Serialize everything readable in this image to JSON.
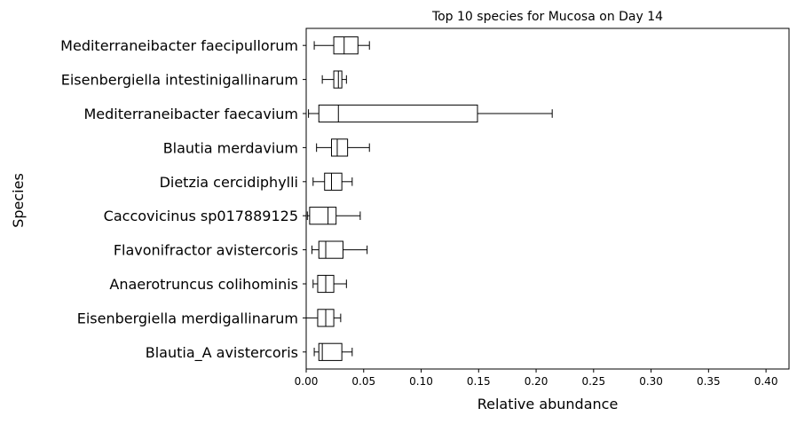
{
  "chart_data": {
    "type": "boxplot",
    "orientation": "horizontal",
    "title": "Top 10 species for Mucosa on Day 14",
    "xlabel": "Relative abundance",
    "ylabel": "Species",
    "xlim": [
      0.0,
      0.42
    ],
    "xticks": [
      0.0,
      0.05,
      0.1,
      0.15,
      0.2,
      0.25,
      0.3,
      0.35,
      0.4
    ],
    "xtick_labels": [
      "0.00",
      "0.05",
      "0.10",
      "0.15",
      "0.20",
      "0.25",
      "0.30",
      "0.35",
      "0.40"
    ],
    "grid": false,
    "box_color": "#000000",
    "categories": [
      "Mediterraneibacter faecipullorum",
      "Eisenbergiella intestinigallinarum",
      "Mediterraneibacter faecavium",
      "Blautia merdavium",
      "Dietzia cercidiphylli",
      "Caccovicinus sp017889125",
      "Flavonifractor avistercoris",
      "Anaerotruncus colihominis",
      "Eisenbergiella merdigallinarum",
      "Blautia_A avistercoris"
    ],
    "boxes": [
      {
        "whisker_low": 0.007,
        "q1": 0.024,
        "median": 0.033,
        "q3": 0.045,
        "whisker_high": 0.055
      },
      {
        "whisker_low": 0.014,
        "q1": 0.024,
        "median": 0.028,
        "q3": 0.031,
        "whisker_high": 0.035
      },
      {
        "whisker_low": 0.002,
        "q1": 0.011,
        "median": 0.028,
        "q3": 0.149,
        "whisker_high": 0.214
      },
      {
        "whisker_low": 0.009,
        "q1": 0.022,
        "median": 0.027,
        "q3": 0.036,
        "whisker_high": 0.055
      },
      {
        "whisker_low": 0.006,
        "q1": 0.016,
        "median": 0.022,
        "q3": 0.031,
        "whisker_high": 0.04
      },
      {
        "whisker_low": 0.001,
        "q1": 0.003,
        "median": 0.019,
        "q3": 0.026,
        "whisker_high": 0.047
      },
      {
        "whisker_low": 0.005,
        "q1": 0.011,
        "median": 0.017,
        "q3": 0.032,
        "whisker_high": 0.053
      },
      {
        "whisker_low": 0.006,
        "q1": 0.01,
        "median": 0.017,
        "q3": 0.024,
        "whisker_high": 0.035
      },
      {
        "whisker_low": 0.0,
        "q1": 0.01,
        "median": 0.017,
        "q3": 0.024,
        "whisker_high": 0.03
      },
      {
        "whisker_low": 0.007,
        "q1": 0.011,
        "median": 0.014,
        "q3": 0.031,
        "whisker_high": 0.04
      }
    ]
  }
}
